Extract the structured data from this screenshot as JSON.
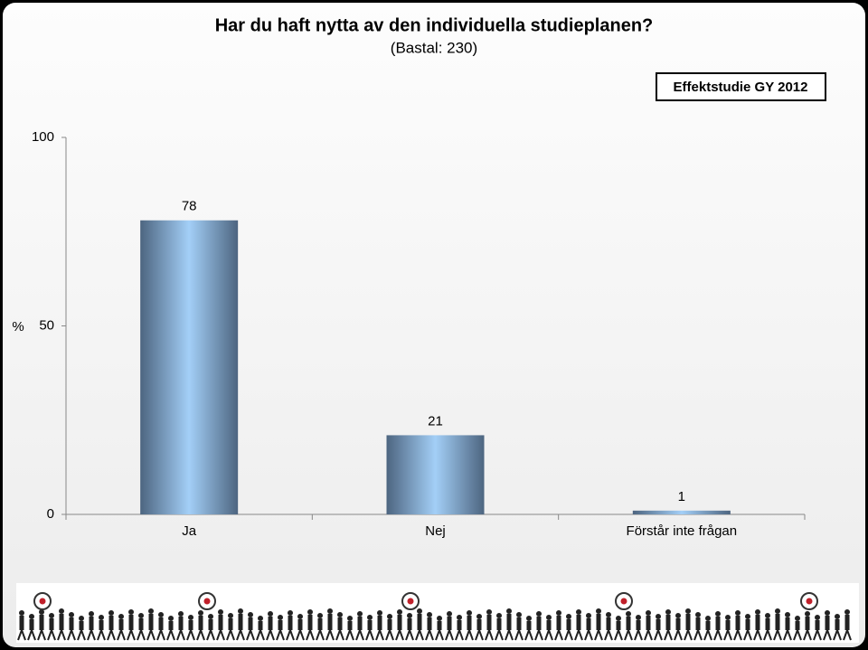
{
  "chart_data": {
    "type": "bar",
    "title": "Har du haft nytta av den individuella studieplanen?",
    "subtitle": "(Bastal: 230)",
    "annotation": "Effektstudie GY 2012",
    "y_label": "%",
    "categories": [
      "Ja",
      "Nej",
      "Förstår inte frågan"
    ],
    "values": [
      78,
      21,
      1
    ],
    "color": "#9cc8f0",
    "ylim": [
      0,
      100
    ],
    "yticks": [
      0,
      50,
      100
    ],
    "grid": false
  }
}
